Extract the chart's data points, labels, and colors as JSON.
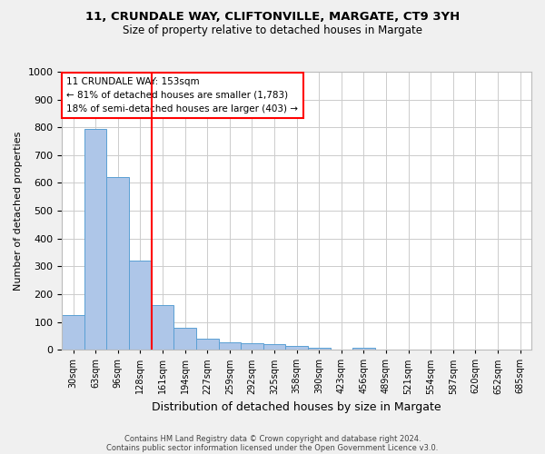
{
  "title1": "11, CRUNDALE WAY, CLIFTONVILLE, MARGATE, CT9 3YH",
  "title2": "Size of property relative to detached houses in Margate",
  "xlabel": "Distribution of detached houses by size in Margate",
  "ylabel": "Number of detached properties",
  "annotation_line1": "11 CRUNDALE WAY: 153sqm",
  "annotation_line2": "← 81% of detached houses are smaller (1,783)",
  "annotation_line3": "18% of semi-detached houses are larger (403) →",
  "bar_labels": [
    "30sqm",
    "63sqm",
    "96sqm",
    "128sqm",
    "161sqm",
    "194sqm",
    "227sqm",
    "259sqm",
    "292sqm",
    "325sqm",
    "358sqm",
    "390sqm",
    "423sqm",
    "456sqm",
    "489sqm",
    "521sqm",
    "554sqm",
    "587sqm",
    "620sqm",
    "652sqm",
    "685sqm"
  ],
  "bar_values": [
    125,
    795,
    620,
    320,
    160,
    80,
    40,
    28,
    23,
    20,
    14,
    8,
    0,
    8,
    0,
    0,
    0,
    0,
    0,
    0,
    0
  ],
  "bar_color": "#aec6e8",
  "bar_edge_color": "#5a9fd4",
  "vline_x": 3.5,
  "vline_color": "red",
  "ylim": [
    0,
    1000
  ],
  "yticks": [
    0,
    100,
    200,
    300,
    400,
    500,
    600,
    700,
    800,
    900,
    1000
  ],
  "footer1": "Contains HM Land Registry data © Crown copyright and database right 2024.",
  "footer2": "Contains public sector information licensed under the Open Government Licence v3.0.",
  "bg_color": "#f0f0f0",
  "plot_bg_color": "#ffffff",
  "grid_color": "#cccccc"
}
